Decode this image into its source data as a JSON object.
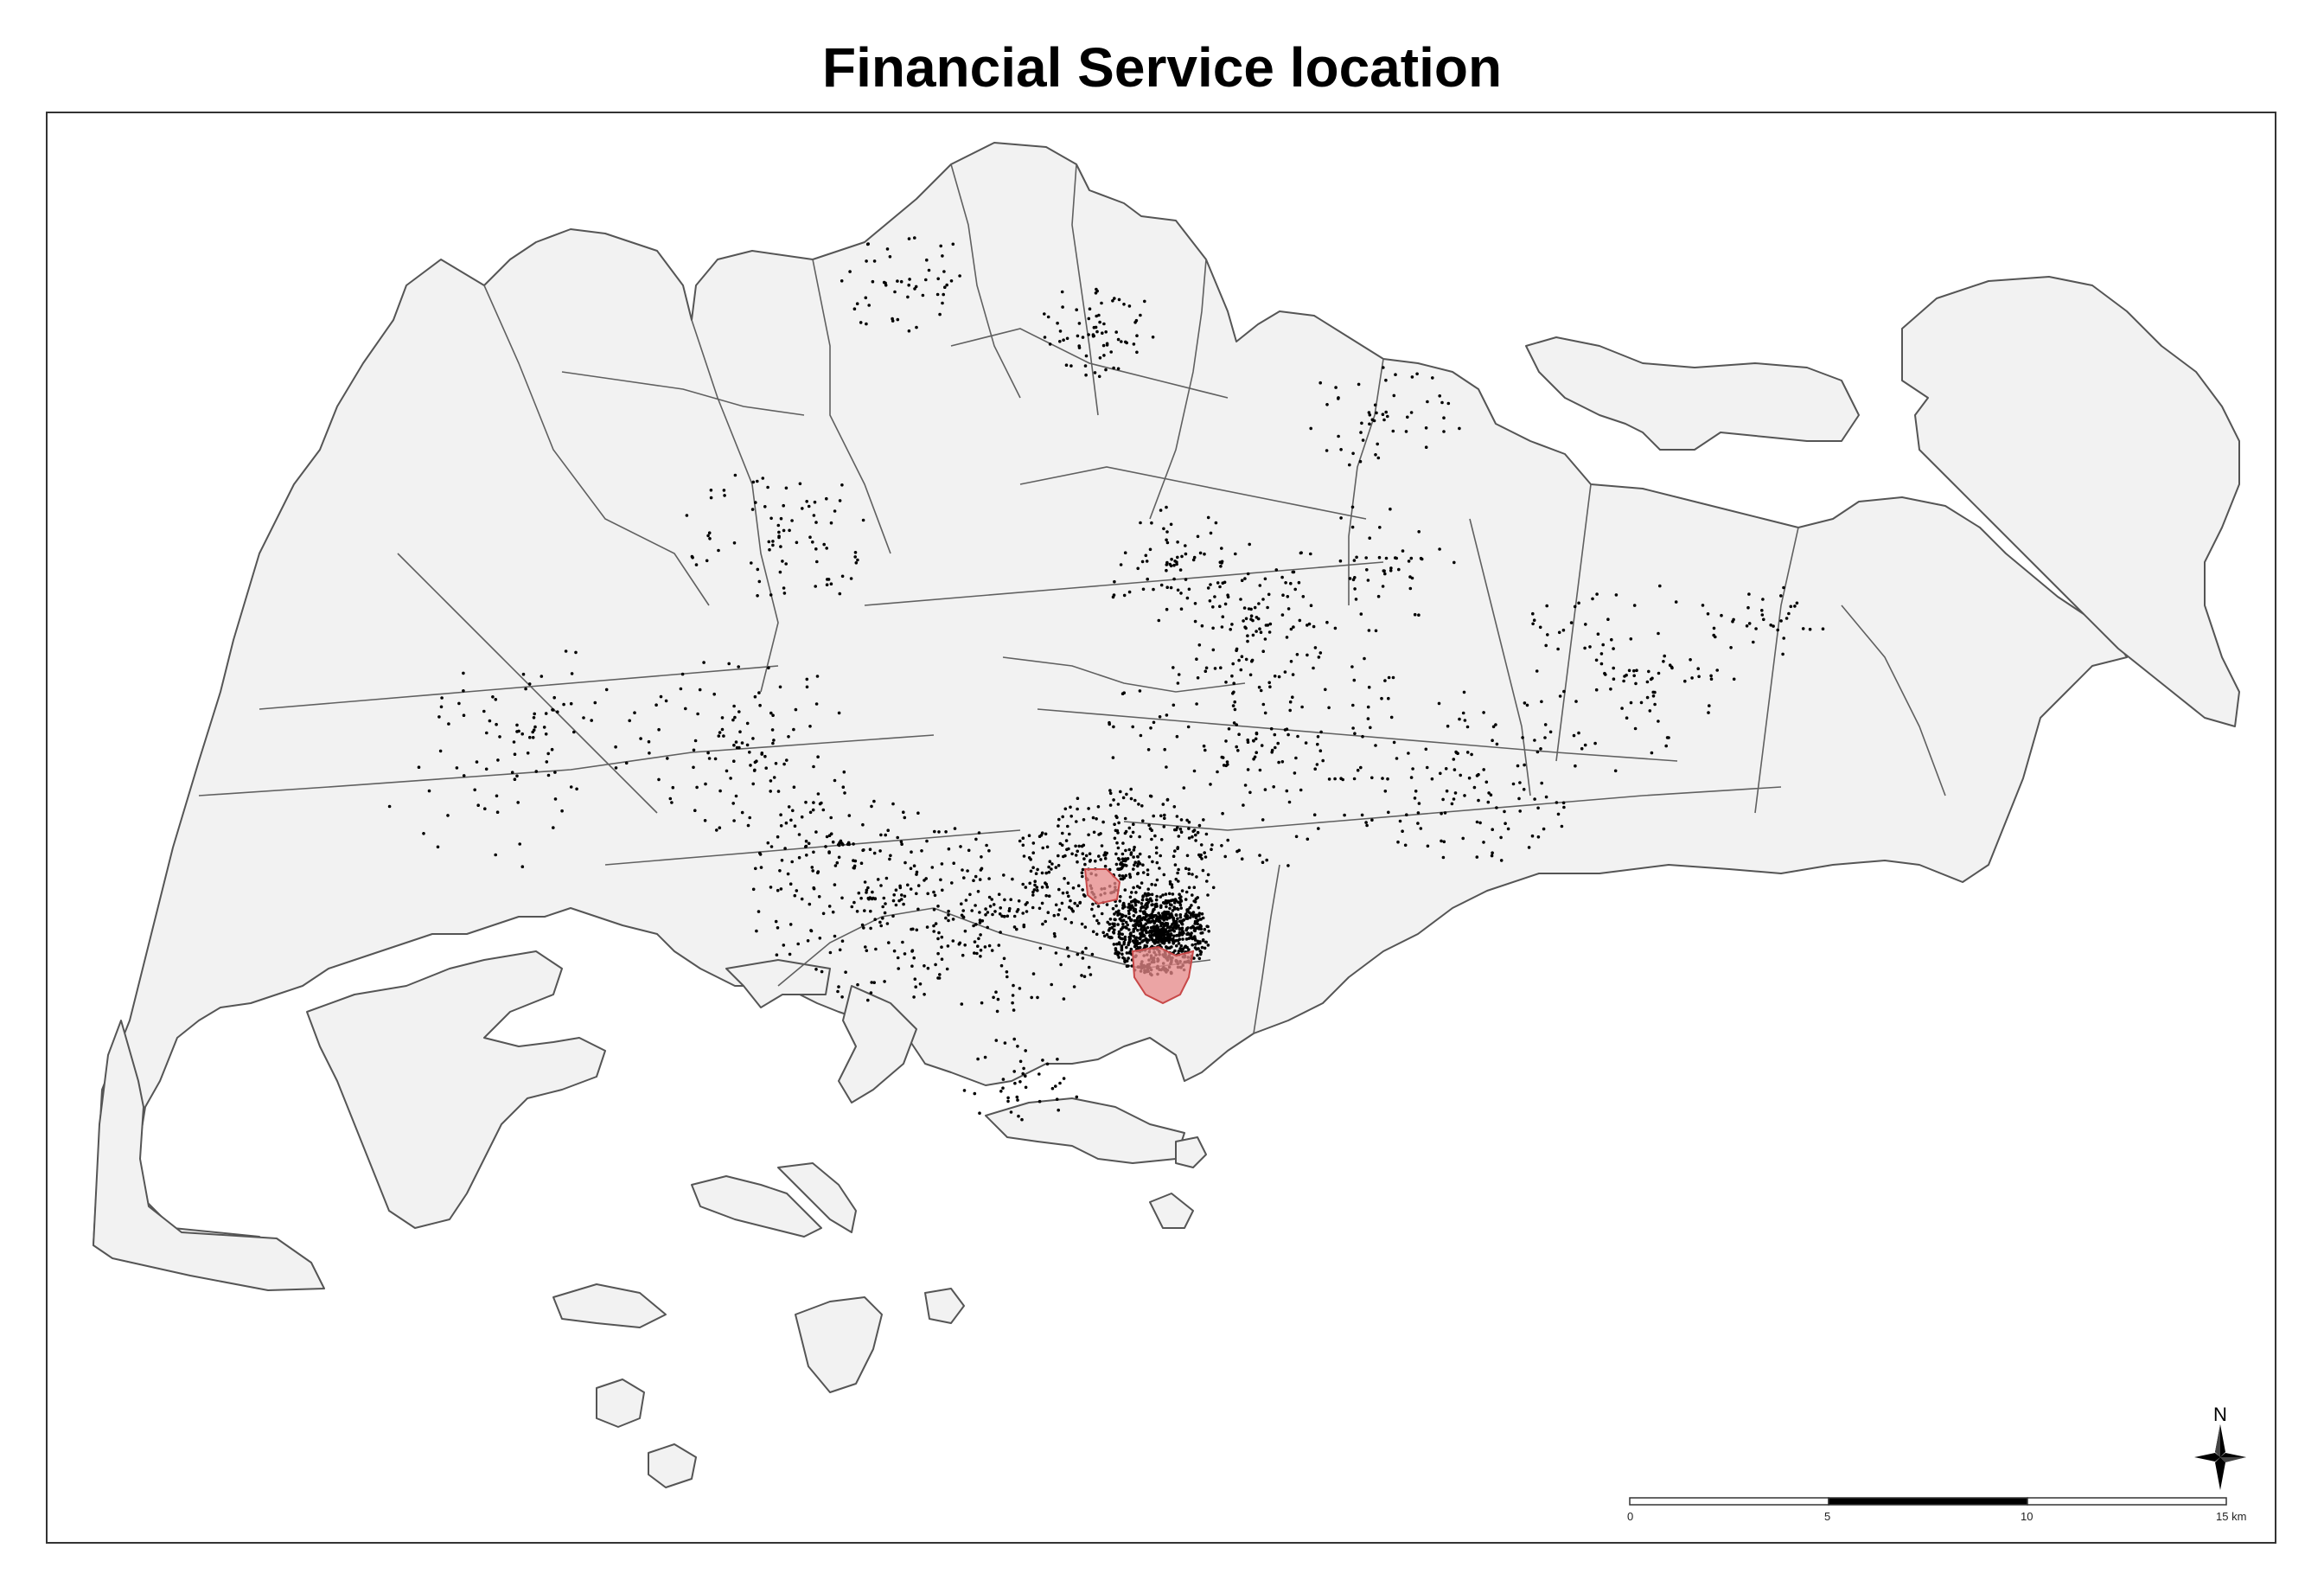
{
  "title": "Financial Service location",
  "scale_bar": {
    "ticks": [
      "0",
      "5",
      "10",
      "15 km"
    ]
  },
  "north_arrow": {
    "label": "N"
  },
  "colors": {
    "land": "#f2f2f2",
    "boundary": "#606060",
    "points": "#000000",
    "highlight": "#e88a8a"
  },
  "icons": [
    "north-arrow-icon",
    "scale-bar"
  ]
}
